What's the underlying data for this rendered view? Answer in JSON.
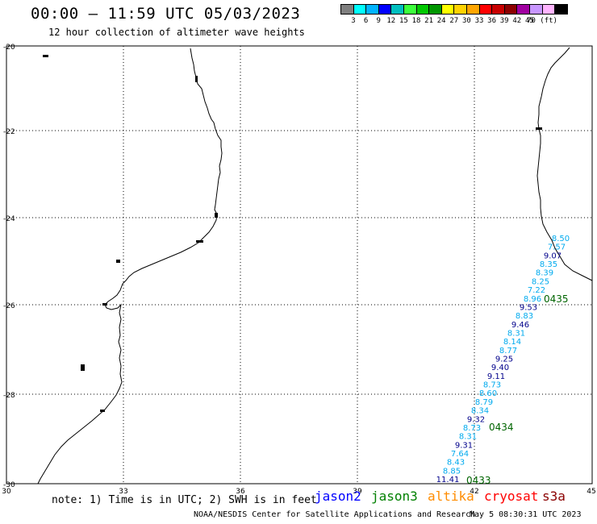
{
  "header": {
    "title": "00:00 – 11:59 UTC 05/03/2023",
    "subtitle": "12 hour collection of altimeter wave heights"
  },
  "legend": {
    "colors": [
      "#7f7f7f",
      "#00ffff",
      "#00b4ff",
      "#0000ff",
      "#00bfbf",
      "#3cff3c",
      "#00c800",
      "#009600",
      "#ffff00",
      "#ffd200",
      "#ffa500",
      "#ff0000",
      "#c80000",
      "#8c0000",
      "#a000a0",
      "#c896ff",
      "#ffb4ff",
      "#000000"
    ],
    "labels": [
      "3",
      "6",
      "9",
      "12",
      "15",
      "18",
      "21",
      "24",
      "27",
      "30",
      "33",
      "36",
      "39",
      "42",
      "45",
      "70 (ft)"
    ]
  },
  "map": {
    "lat_labels": [
      "-20",
      "-22",
      "-24",
      "-26",
      "-28",
      "-30"
    ],
    "lon_labels": [
      "30",
      "33",
      "36",
      "39",
      "42",
      "45"
    ],
    "swh_track": [
      {
        "v": "8.50",
        "c": "#00aaee"
      },
      {
        "v": "7.57",
        "c": "#00aaee"
      },
      {
        "v": "9.07",
        "c": "#00008b"
      },
      {
        "v": "8.35",
        "c": "#00aaee"
      },
      {
        "v": "8.39",
        "c": "#00aaee"
      },
      {
        "v": "8.25",
        "c": "#00aaee"
      },
      {
        "v": "7.22",
        "c": "#00aaee"
      },
      {
        "v": "8.96",
        "c": "#00aaee"
      },
      {
        "v": "9.53",
        "c": "#00008b"
      },
      {
        "v": "8.83",
        "c": "#00aaee"
      },
      {
        "v": "9.46",
        "c": "#00008b"
      },
      {
        "v": "8.31",
        "c": "#00aaee"
      },
      {
        "v": "8.14",
        "c": "#00aaee"
      },
      {
        "v": "8.77",
        "c": "#00aaee"
      },
      {
        "v": "9.25",
        "c": "#00008b"
      },
      {
        "v": "9.40",
        "c": "#00008b"
      },
      {
        "v": "9.11",
        "c": "#00008b"
      },
      {
        "v": "8.73",
        "c": "#00aaee"
      },
      {
        "v": "8.60",
        "c": "#00aaee"
      },
      {
        "v": "8.79",
        "c": "#00aaee"
      },
      {
        "v": "8.34",
        "c": "#00aaee"
      },
      {
        "v": "9.32",
        "c": "#00008b"
      },
      {
        "v": "8.73",
        "c": "#00aaee"
      },
      {
        "v": "8.31",
        "c": "#00aaee"
      },
      {
        "v": "9.31",
        "c": "#00008b"
      },
      {
        "v": "7.64",
        "c": "#00aaee"
      },
      {
        "v": "8.43",
        "c": "#00aaee"
      },
      {
        "v": "8.85",
        "c": "#00aaee"
      },
      {
        "v": "11.41",
        "c": "#00008b"
      }
    ],
    "time_marks": [
      {
        "label": "0435",
        "color": "#006400"
      },
      {
        "label": "0434",
        "color": "#006400"
      },
      {
        "label": "0433",
        "color": "#006400"
      }
    ]
  },
  "footer": {
    "note": "note: 1) Time is in UTC; 2) SWH is in feet",
    "satellites": [
      {
        "name": "jason2",
        "color": "#0000ff"
      },
      {
        "name": "jason3",
        "color": "#008000"
      },
      {
        "name": "altika",
        "color": "#ff8c00"
      },
      {
        "name": "cryosat",
        "color": "#ff0000"
      },
      {
        "name": "s3a",
        "color": "#8b0000"
      }
    ],
    "credit": "NOAA/NESDIS Center for Satellite Applications and Research",
    "timestamp": "May  5 08:30:31 UTC 2023"
  }
}
